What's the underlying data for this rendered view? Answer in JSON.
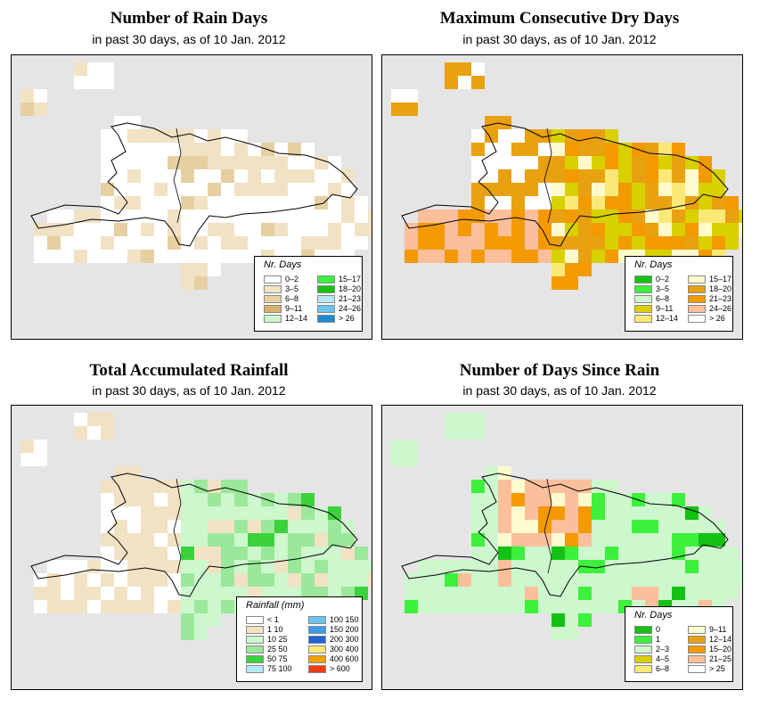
{
  "panels": [
    {
      "title": "Number of Rain Days",
      "subtitle": "in past 30 days, as of  10 Jan. 2012",
      "legend_title": "Nr. Days",
      "legend": [
        {
          "label": "0–2",
          "color": "#ffffff"
        },
        {
          "label": "3–5",
          "color": "#f2e2c4"
        },
        {
          "label": "6–8",
          "color": "#e6d0a2"
        },
        {
          "label": "9–11",
          "color": "#d6b26a"
        },
        {
          "label": "12–14",
          "color": "#cdf7cd"
        },
        {
          "label": "15–17",
          "color": "#3cf03c"
        },
        {
          "label": "18–20",
          "color": "#13c213"
        },
        {
          "label": "21–23",
          "color": "#b6e9f8"
        },
        {
          "label": "24–26",
          "color": "#6ac6f0"
        },
        {
          "label": "> 26",
          "color": "#1e8ad6"
        }
      ]
    },
    {
      "title": "Maximum Consecutive Dry Days",
      "subtitle": "in past 30 days, as of  10 Jan. 2012",
      "legend_title": "Nr. Days",
      "legend": [
        {
          "label": "0–2",
          "color": "#13c213"
        },
        {
          "label": "3–5",
          "color": "#3cf03c"
        },
        {
          "label": "6–8",
          "color": "#cdf7cd"
        },
        {
          "label": "9–11",
          "color": "#d9d000"
        },
        {
          "label": "12–14",
          "color": "#fbe977"
        },
        {
          "label": "15–17",
          "color": "#fffacd"
        },
        {
          "label": "18–20",
          "color": "#e8a110"
        },
        {
          "label": "21–23",
          "color": "#f29a00"
        },
        {
          "label": "24–26",
          "color": "#fbbf9c"
        },
        {
          "label": "> 26",
          "color": "#ffffff"
        }
      ]
    },
    {
      "title": "Total Accumulated Rainfall",
      "subtitle": "in past 30 days, as of  10 Jan. 2012",
      "legend_title": "Rainfall (mm)",
      "legend": [
        {
          "label": "< 1",
          "color": "#ffffff"
        },
        {
          "label": "1   10",
          "color": "#f2e2c4"
        },
        {
          "label": "10   25",
          "color": "#cdf7cd"
        },
        {
          "label": "25   50",
          "color": "#9be89b"
        },
        {
          "label": "50   75",
          "color": "#3cd23c"
        },
        {
          "label": "75   100",
          "color": "#b6e9f8"
        },
        {
          "label": "100   150",
          "color": "#6ac6f0"
        },
        {
          "label": "150   200",
          "color": "#3c9ee6"
        },
        {
          "label": "200   300",
          "color": "#1e64d6"
        },
        {
          "label": "300   400",
          "color": "#fbe977"
        },
        {
          "label": "400   600",
          "color": "#f2a100"
        },
        {
          "label": "> 600",
          "color": "#f23c14"
        }
      ]
    },
    {
      "title": "Number of Days Since Rain",
      "subtitle": "in past 30 days, as of  10 Jan. 2012",
      "legend_title": "Nr. Days",
      "legend": [
        {
          "label": "0",
          "color": "#13c213"
        },
        {
          "label": "1",
          "color": "#3cf03c"
        },
        {
          "label": "2–3",
          "color": "#cdf7cd"
        },
        {
          "label": "4–5",
          "color": "#d9d000"
        },
        {
          "label": "6–8",
          "color": "#fbe977"
        },
        {
          "label": "9–11",
          "color": "#fffacd"
        },
        {
          "label": "12–14",
          "color": "#e8a110"
        },
        {
          "label": "15–20",
          "color": "#f29a00"
        },
        {
          "label": "21–25",
          "color": "#fbbf9c"
        },
        {
          "label": "> 25",
          "color": "#ffffff"
        }
      ]
    }
  ],
  "colors": {
    "background": "#e5e5e5",
    "outline": "#000000"
  }
}
